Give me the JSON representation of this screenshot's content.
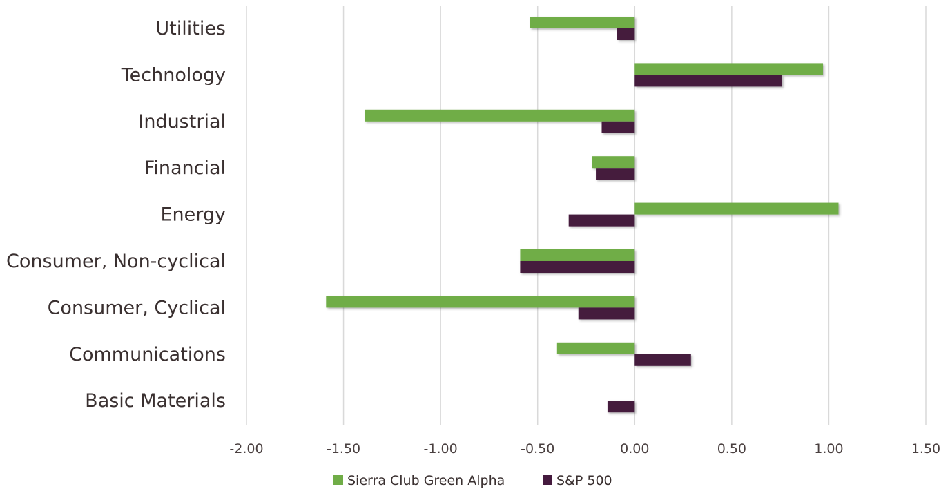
{
  "chart_data": {
    "type": "bar",
    "orientation": "horizontal",
    "categories": [
      "Utilities",
      "Technology",
      "Industrial",
      "Financial",
      "Energy",
      "Consumer, Non-cyclical",
      "Consumer, Cyclical",
      "Communications",
      "Basic Materials"
    ],
    "series": [
      {
        "name": "Sierra Club Green Alpha",
        "color": "#70ad47",
        "values": [
          -0.54,
          0.97,
          -1.39,
          -0.22,
          1.05,
          -0.59,
          -1.59,
          -0.4,
          0.0
        ]
      },
      {
        "name": "S&P 500",
        "color": "#451a3e",
        "values": [
          -0.09,
          0.76,
          -0.17,
          -0.2,
          -0.34,
          -0.59,
          -0.29,
          0.29,
          -0.14
        ]
      }
    ],
    "xlim": [
      -2.0,
      1.5
    ],
    "xticks": [
      "-2.00",
      "-1.50",
      "-1.00",
      "-0.50",
      "0.00",
      "0.50",
      "1.00",
      "1.50"
    ],
    "xtick_values": [
      -2.0,
      -1.5,
      -1.0,
      -0.5,
      0.0,
      0.5,
      1.0,
      1.5
    ],
    "grid": true,
    "legend_position": "bottom",
    "title": "",
    "xlabel": "",
    "ylabel": ""
  }
}
